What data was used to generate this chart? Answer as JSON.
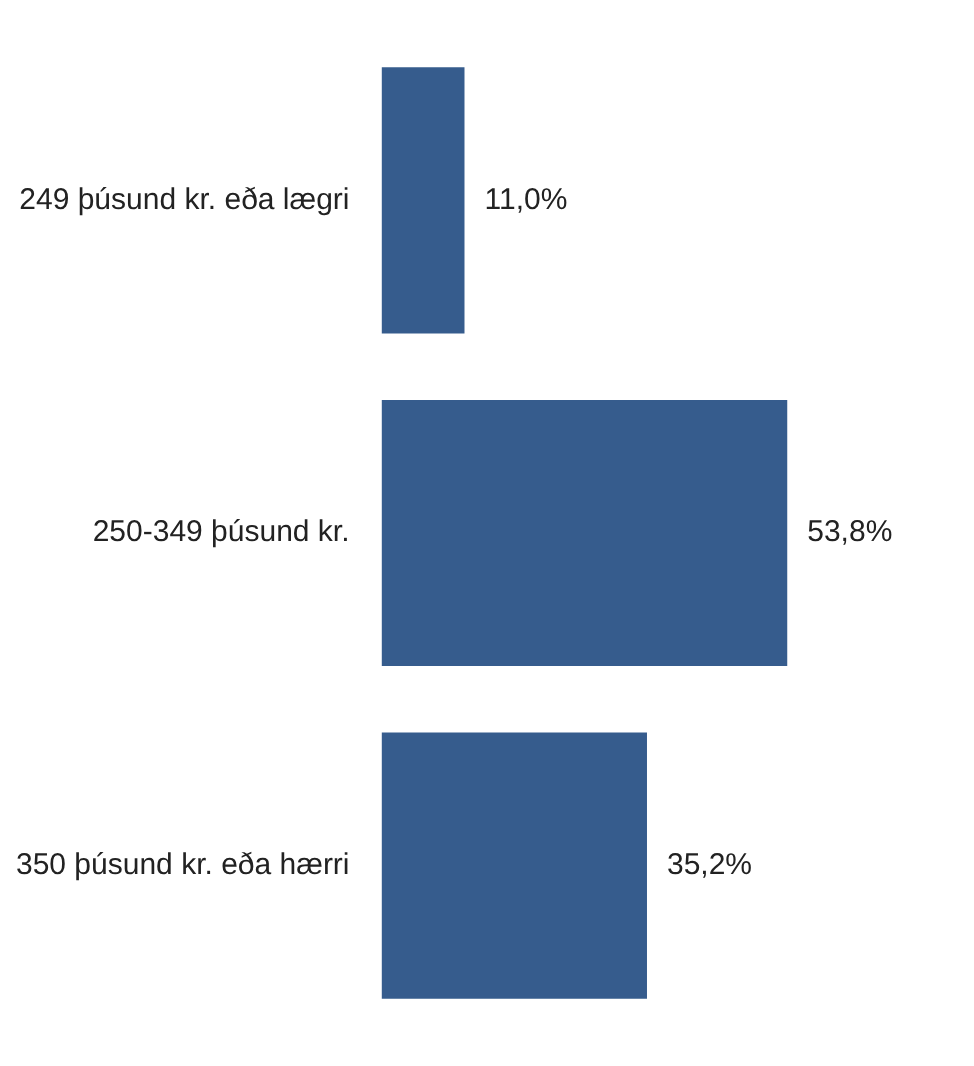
{
  "chart_data": {
    "type": "bar",
    "orientation": "horizontal",
    "categories": [
      "249 þúsund kr. eða lægri",
      "250-349 þúsund kr.",
      "350 þúsund kr. eða hærri"
    ],
    "values": [
      11.0,
      53.8,
      35.2
    ],
    "value_labels": [
      "11,0%",
      "53,8%",
      "35,2%"
    ],
    "color": "#365c8d",
    "tick_labels": "y"
  }
}
